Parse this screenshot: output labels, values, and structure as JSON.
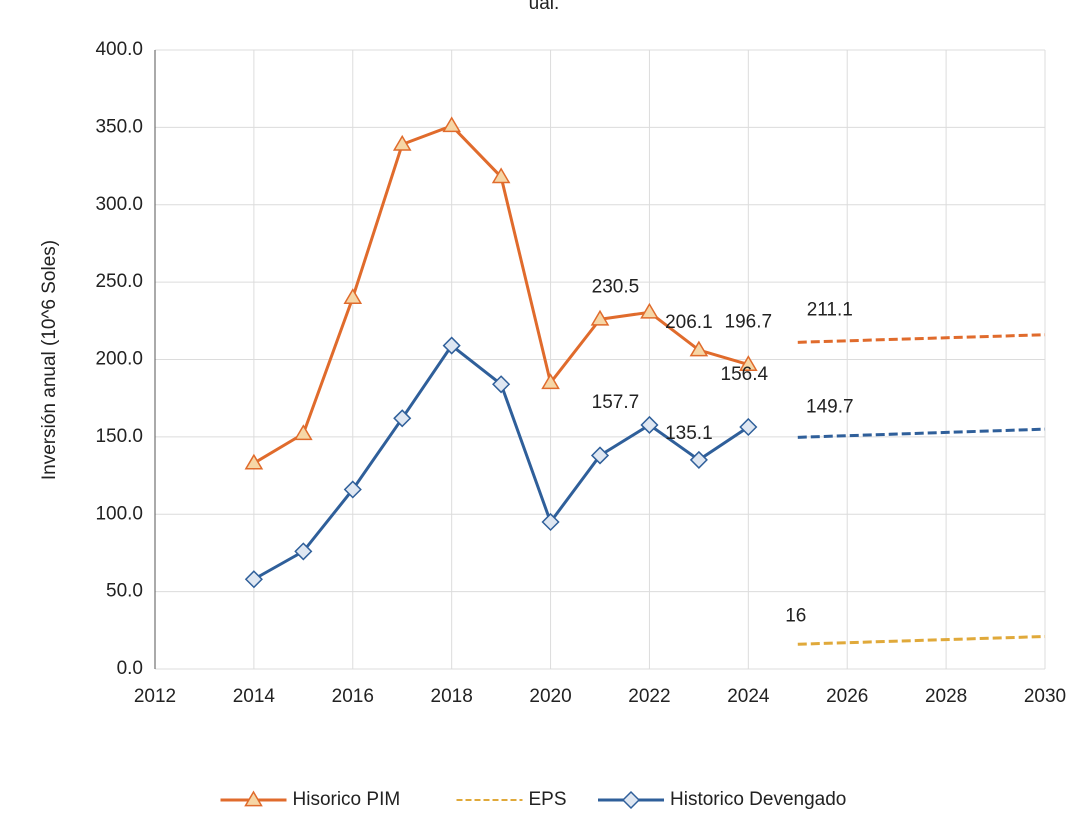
{
  "chart_data": {
    "type": "line",
    "title": "ual.",
    "ylabel": "Inversión anual (10^6 Soles)",
    "xlim": [
      2012,
      2030
    ],
    "xticks": [
      2012,
      2014,
      2016,
      2018,
      2020,
      2022,
      2024,
      2026,
      2028,
      2030
    ],
    "ylim": [
      0,
      400
    ],
    "yticks": [
      {
        "value": 0,
        "label": "0.0"
      },
      {
        "value": 50,
        "label": "50.0"
      },
      {
        "value": 100,
        "label": "100.0"
      },
      {
        "value": 150,
        "label": "150.0"
      },
      {
        "value": 200,
        "label": "200.0"
      },
      {
        "value": 250,
        "label": "250.0"
      },
      {
        "value": 300,
        "label": "300.0"
      },
      {
        "value": 350,
        "label": "350.0"
      },
      {
        "value": 400,
        "label": "400.0"
      }
    ],
    "grid": true,
    "legend": "bottom",
    "series": [
      {
        "name": "Hisorico PIM",
        "color": "#e06b2c",
        "marker": "triangle",
        "dash": false,
        "x": [
          2014,
          2015,
          2016,
          2017,
          2018,
          2019,
          2020,
          2021,
          2022,
          2023,
          2024
        ],
        "values": [
          133,
          152,
          240,
          339,
          351,
          318,
          185,
          226,
          230.5,
          206.1,
          196.7
        ],
        "value_labels": [
          null,
          null,
          null,
          null,
          null,
          null,
          null,
          null,
          "230.5",
          "206.1",
          "196.7"
        ]
      },
      {
        "name": "EPS",
        "color": "#e0a93a",
        "marker": "none",
        "dash": true,
        "x": [
          2025,
          2030
        ],
        "values": [
          16,
          21
        ],
        "value_labels": [
          "16",
          null
        ]
      },
      {
        "name": "Historico Devengado",
        "color": "#2f5f9a",
        "marker": "diamond",
        "dash": false,
        "x": [
          2014,
          2015,
          2016,
          2017,
          2018,
          2019,
          2020,
          2021,
          2022,
          2023,
          2024
        ],
        "values": [
          58,
          76,
          116,
          162,
          209,
          184,
          95,
          138,
          157.7,
          135.1,
          156.4
        ],
        "value_labels": [
          null,
          null,
          null,
          null,
          null,
          null,
          null,
          null,
          "157.7",
          "135.1",
          "156.4"
        ]
      },
      {
        "color": "#e06b2c",
        "marker": "none",
        "dash": true,
        "x": [
          2025,
          2030
        ],
        "values": [
          211.1,
          216
        ],
        "value_labels": [
          "211.1",
          null
        ]
      },
      {
        "color": "#2f5f9a",
        "marker": "none",
        "dash": true,
        "x": [
          2025,
          2030
        ],
        "values": [
          149.7,
          155
        ],
        "value_labels": [
          "149.7",
          null
        ]
      }
    ]
  }
}
